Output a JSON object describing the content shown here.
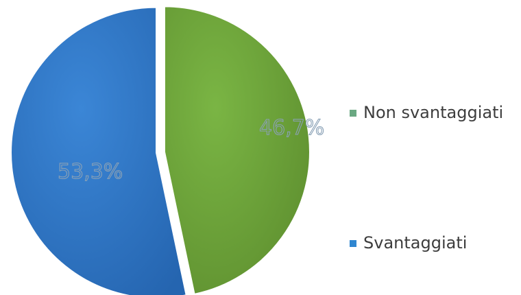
{
  "chart_data": {
    "type": "pie",
    "title": "",
    "slices": [
      {
        "label": "Non svantaggiati",
        "value": 46.7,
        "value_label": "46,7%",
        "color": "#6fa23a"
      },
      {
        "label": "Svantaggiati",
        "value": 53.3,
        "value_label": "53,3%",
        "color": "#2f78c9"
      }
    ],
    "start_angle": "12 o'clock",
    "direction": "clockwise",
    "exploded": true,
    "legend_position": "right"
  }
}
